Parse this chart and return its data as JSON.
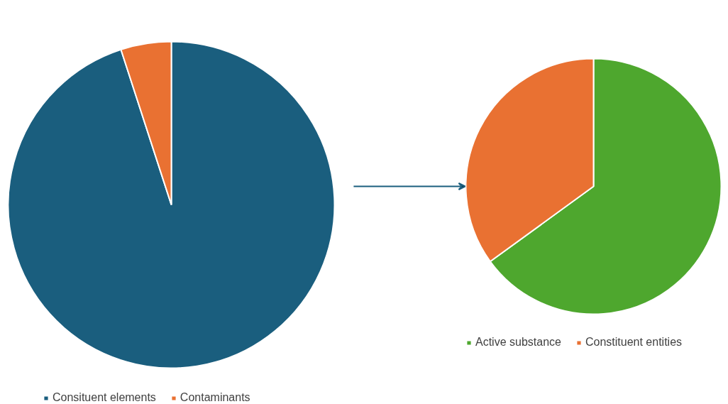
{
  "chart_data": [
    {
      "type": "pie",
      "categories": [
        "Consituent elements",
        "Contaminants"
      ],
      "values": [
        95,
        5
      ],
      "colors": [
        "#1a5e7e",
        "#e97132"
      ],
      "legend": "bottom"
    },
    {
      "type": "pie",
      "categories": [
        "Active substance",
        "Constituent entities"
      ],
      "values": [
        65,
        35
      ],
      "colors": [
        "#4ea72e",
        "#e97132"
      ],
      "legend": "bottom"
    }
  ]
}
